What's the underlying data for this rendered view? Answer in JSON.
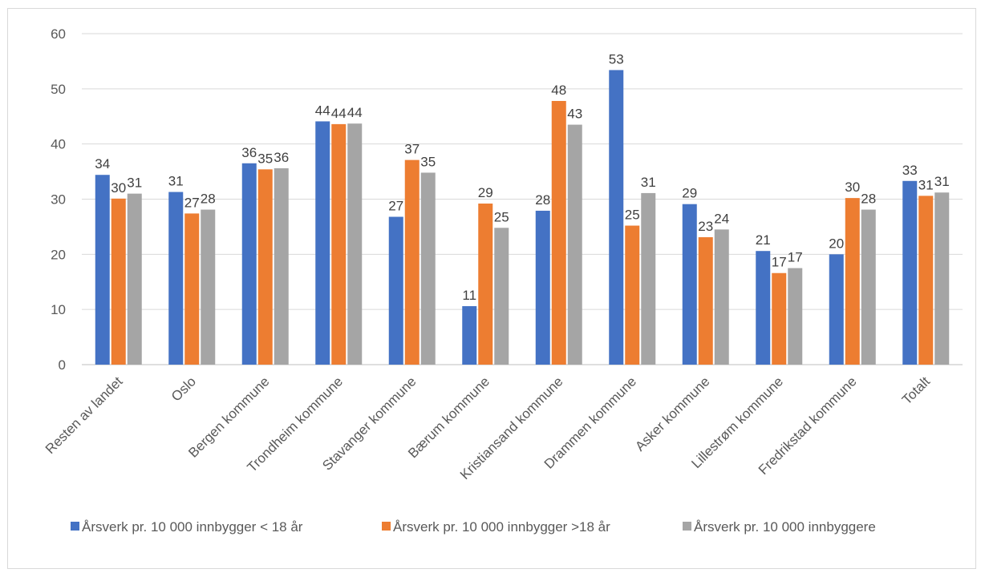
{
  "chart_data": {
    "type": "bar",
    "categories": [
      "Resten av landet",
      "Oslo",
      "Bergen kommune",
      "Trondheim kommune",
      "Stavanger kommune",
      "Bærum kommune",
      "Kristiansand kommune",
      "Drammen kommune",
      "Asker kommune",
      "Lillestrøm kommune",
      "Fredrikstad kommune",
      "Totalt"
    ],
    "series": [
      {
        "name": "Årsverk pr.  10 000 innbygger < 18 år",
        "color": "#4472c4",
        "values": [
          34.4,
          31.3,
          36.5,
          44.1,
          26.8,
          10.6,
          27.9,
          53.4,
          29.1,
          20.6,
          20.0,
          33.3
        ],
        "labels": [
          "34",
          "31",
          "36",
          "44",
          "27",
          "11",
          "28",
          "53",
          "29",
          "21",
          "20",
          "33"
        ]
      },
      {
        "name": "Årsverk pr.  10 000 innbygger >18 år",
        "color": "#ed7d31",
        "values": [
          30.1,
          27.4,
          35.4,
          43.6,
          37.1,
          29.2,
          47.8,
          25.2,
          23.1,
          16.6,
          30.2,
          30.6
        ],
        "labels": [
          "30",
          "27",
          "35",
          "44",
          "37",
          "29",
          "48",
          "25",
          "23",
          "17",
          "30",
          "31"
        ]
      },
      {
        "name": "Årsverk pr. 10 000 innbyggere",
        "color": "#a5a5a5",
        "values": [
          31.0,
          28.1,
          35.6,
          43.7,
          34.8,
          24.8,
          43.5,
          31.1,
          24.5,
          17.5,
          28.1,
          31.2
        ],
        "labels": [
          "31",
          "28",
          "36",
          "44",
          "35",
          "25",
          "43",
          "31",
          "24",
          "17",
          "28",
          "31"
        ]
      }
    ],
    "y_ticks": [
      "0",
      "10",
      "20",
      "30",
      "40",
      "50",
      "60"
    ],
    "ylim": [
      0,
      60
    ],
    "grid": true,
    "legend_position": "bottom"
  }
}
